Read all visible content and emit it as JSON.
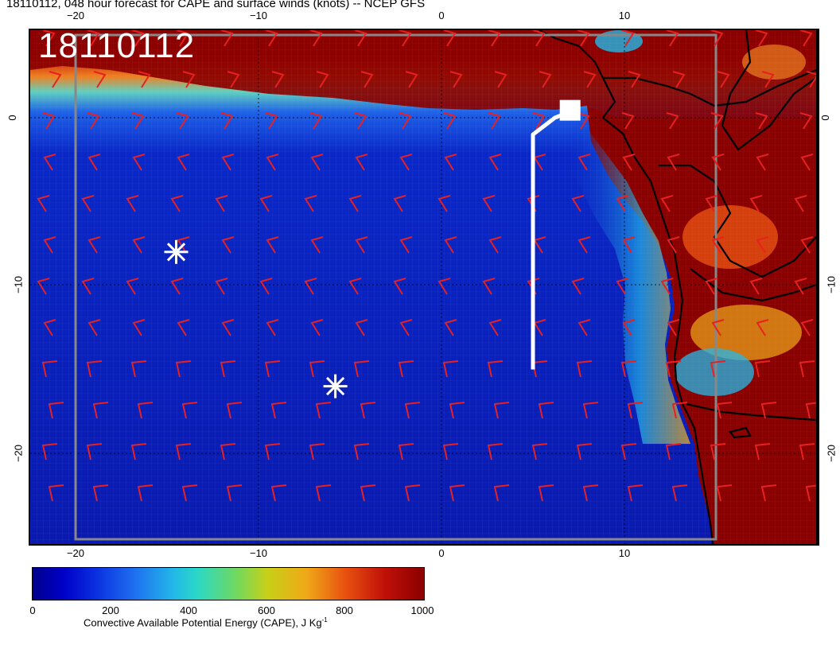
{
  "title": "18110112, 048 hour forecast for CAPE and surface winds (knots) -- NCEP GFS",
  "date_stamp": "18110112",
  "longitude_ticks": [
    "−20",
    "−10",
    "0",
    "10"
  ],
  "latitude_ticks": [
    "0",
    "−10",
    "−20"
  ],
  "colorbar": {
    "min": 0,
    "max": 1000,
    "labels": [
      "0",
      "200",
      "400",
      "600",
      "800",
      "1000"
    ],
    "title": "Convective Available Potential Energy (CAPE), J Kg",
    "title_exponent": "-1",
    "colors": {
      "low": "#00008b",
      "mid": "#2ad8c8",
      "high": "#8b0000"
    }
  },
  "map": {
    "ocean_color": "#0a1ab0",
    "land_color": "#800000",
    "wind_barb_color": "#e82020",
    "markers": [
      {
        "type": "asterisk",
        "lon": -14.5,
        "lat": -8,
        "color": "#ffffff"
      },
      {
        "type": "asterisk",
        "lon": -5.8,
        "lat": -16,
        "color": "#ffffff"
      }
    ],
    "track": {
      "color": "#ffffff",
      "points": [
        [
          5,
          -15
        ],
        [
          5,
          -1
        ],
        [
          6.2,
          0
        ],
        [
          6.9,
          0.3
        ]
      ]
    },
    "grid": "dotted"
  }
}
